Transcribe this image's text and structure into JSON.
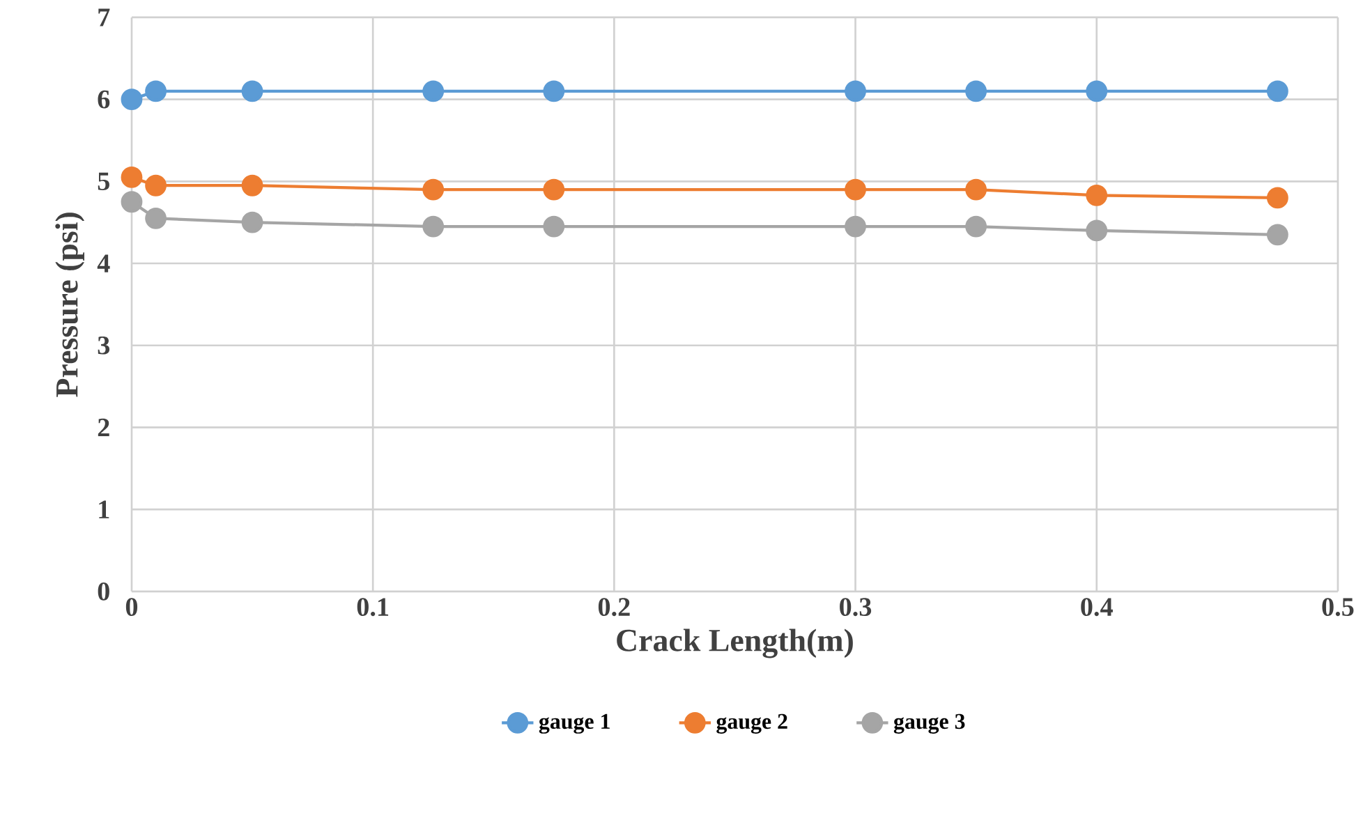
{
  "chart_data": {
    "type": "line",
    "xlabel": "Crack Length(m)",
    "ylabel": "Pressure (psi)",
    "x": [
      0,
      0.01,
      0.05,
      0.125,
      0.175,
      0.3,
      0.35,
      0.4,
      0.475
    ],
    "series": [
      {
        "name": "gauge 1",
        "color": "#5b9bd5",
        "values": [
          6.0,
          6.1,
          6.1,
          6.1,
          6.1,
          6.1,
          6.1,
          6.1,
          6.1
        ]
      },
      {
        "name": "gauge 2",
        "color": "#ed7d31",
        "values": [
          5.05,
          4.95,
          4.95,
          4.9,
          4.9,
          4.9,
          4.9,
          4.83,
          4.8
        ]
      },
      {
        "name": "gauge 3",
        "color": "#a5a5a5",
        "values": [
          4.75,
          4.55,
          4.5,
          4.45,
          4.45,
          4.45,
          4.45,
          4.4,
          4.35
        ]
      }
    ],
    "xlim": [
      0,
      0.5
    ],
    "xticks": [
      0,
      0.1,
      0.2,
      0.3,
      0.4,
      0.5
    ],
    "ylim": [
      0,
      7
    ],
    "yticks": [
      0,
      1,
      2,
      3,
      4,
      5,
      6,
      7
    ],
    "grid": true,
    "legend": "bottom",
    "marker": "circle",
    "line_style": "solid"
  }
}
